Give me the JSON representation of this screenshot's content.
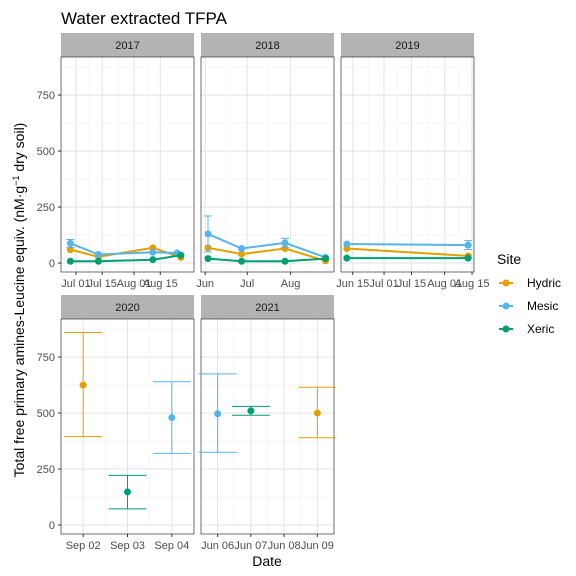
{
  "chart_data": {
    "type": "line",
    "title": "Water extracted TFPA",
    "xlabel": "Date",
    "ylabel": "Total free primary amines-Leucine equiv. (nM·g⁻¹ dry soil)",
    "ylabel_prefix": "Total free primary amines-Leucine equiv. (nM",
    "ylabel_mid": "g",
    "ylabel_sup": "−1",
    "ylabel_suffix": " dry soil)",
    "ylim": [
      -40,
      920
    ],
    "yticks": [
      0,
      250,
      500,
      750
    ],
    "grid": true,
    "legend": {
      "title": "Site",
      "position": "right",
      "entries": [
        {
          "name": "Hydric",
          "color": "#E69F00"
        },
        {
          "name": "Mesic",
          "color": "#56B4E9"
        },
        {
          "name": "Xeric",
          "color": "#009E73"
        }
      ]
    },
    "panels": [
      {
        "label": "2017",
        "xlim": [
          -5,
          66
        ],
        "xticks": [
          {
            "x": 3,
            "label": "Jul 01"
          },
          {
            "x": 17,
            "label": "Jul 15"
          },
          {
            "x": 34,
            "label": "Aug 01"
          },
          {
            "x": 48,
            "label": "Aug 15"
          }
        ],
        "connect": true,
        "series": [
          {
            "name": "Hydric",
            "points": [
              {
                "x": 0,
                "y": 60
              },
              {
                "x": 15,
                "y": 28
              },
              {
                "x": 44,
                "y": 68
              },
              {
                "x": 59,
                "y": 25
              }
            ]
          },
          {
            "name": "Mesic",
            "points": [
              {
                "x": 0,
                "y": 88,
                "ymin": 70,
                "ymax": 105
              },
              {
                "x": 15,
                "y": 38
              },
              {
                "x": 44,
                "y": 48
              },
              {
                "x": 57,
                "y": 45
              }
            ]
          },
          {
            "name": "Xeric",
            "points": [
              {
                "x": 0,
                "y": 8
              },
              {
                "x": 15,
                "y": 8
              },
              {
                "x": 44,
                "y": 15
              },
              {
                "x": 59,
                "y": 35
              }
            ]
          }
        ]
      },
      {
        "label": "2018",
        "xlim": [
          -3,
          92
        ],
        "xticks": [
          {
            "x": 0,
            "label": "Jun"
          },
          {
            "x": 30,
            "label": "Jul"
          },
          {
            "x": 61,
            "label": "Aug"
          }
        ],
        "connect": true,
        "series": [
          {
            "name": "Hydric",
            "points": [
              {
                "x": 2,
                "y": 68
              },
              {
                "x": 26,
                "y": 40
              },
              {
                "x": 57,
                "y": 65
              },
              {
                "x": 86,
                "y": 10
              }
            ]
          },
          {
            "name": "Mesic",
            "points": [
              {
                "x": 2,
                "y": 130,
                "ymin": 50,
                "ymax": 210
              },
              {
                "x": 26,
                "y": 65
              },
              {
                "x": 57,
                "y": 90,
                "ymin": 70,
                "ymax": 110
              },
              {
                "x": 86,
                "y": 25
              }
            ]
          },
          {
            "name": "Xeric",
            "points": [
              {
                "x": 2,
                "y": 20
              },
              {
                "x": 26,
                "y": 8
              },
              {
                "x": 57,
                "y": 8
              },
              {
                "x": 86,
                "y": 20
              }
            ]
          }
        ]
      },
      {
        "label": "2019",
        "xlim": [
          9,
          77
        ],
        "xticks": [
          {
            "x": 15,
            "label": "Jun 15"
          },
          {
            "x": 31,
            "label": "Jul 01"
          },
          {
            "x": 45,
            "label": "Jul 15"
          },
          {
            "x": 62,
            "label": "Aug 01"
          },
          {
            "x": 76,
            "label": "Aug 15"
          }
        ],
        "connect": true,
        "series": [
          {
            "name": "Hydric",
            "points": [
              {
                "x": 12,
                "y": 65
              },
              {
                "x": 74,
                "y": 32
              }
            ]
          },
          {
            "name": "Mesic",
            "points": [
              {
                "x": 12,
                "y": 85
              },
              {
                "x": 74,
                "y": 80,
                "ymin": 60,
                "ymax": 100
              }
            ]
          },
          {
            "name": "Xeric",
            "points": [
              {
                "x": 12,
                "y": 22
              },
              {
                "x": 74,
                "y": 22
              }
            ]
          }
        ]
      },
      {
        "label": "2020",
        "xlim": [
          0.5,
          3.5
        ],
        "xticks": [
          {
            "x": 1,
            "label": "Sep 02"
          },
          {
            "x": 2,
            "label": "Sep 03"
          },
          {
            "x": 3,
            "label": "Sep 04"
          }
        ],
        "connect": false,
        "series": [
          {
            "name": "Hydric",
            "points": [
              {
                "x": 1,
                "y": 625,
                "ymin": 395,
                "ymax": 860
              }
            ]
          },
          {
            "name": "Mesic",
            "points": [
              {
                "x": 3,
                "y": 480,
                "ymin": 320,
                "ymax": 640
              }
            ]
          },
          {
            "name": "Xeric",
            "points": [
              {
                "x": 2,
                "y": 148,
                "ymin": 72,
                "ymax": 222
              }
            ]
          }
        ]
      },
      {
        "label": "2021",
        "xlim": [
          0.5,
          4.5
        ],
        "xticks": [
          {
            "x": 1,
            "label": "Jun 06"
          },
          {
            "x": 2,
            "label": "Jun 07"
          },
          {
            "x": 3,
            "label": "Jun 08"
          },
          {
            "x": 4,
            "label": "Jun 09"
          }
        ],
        "connect": false,
        "series": [
          {
            "name": "Hydric",
            "points": [
              {
                "x": 4,
                "y": 500,
                "ymin": 390,
                "ymax": 615
              }
            ]
          },
          {
            "name": "Mesic",
            "points": [
              {
                "x": 1,
                "y": 497,
                "ymin": 325,
                "ymax": 675
              }
            ]
          },
          {
            "name": "Xeric",
            "points": [
              {
                "x": 2,
                "y": 510,
                "ymin": 490,
                "ymax": 530
              }
            ]
          }
        ]
      }
    ]
  }
}
